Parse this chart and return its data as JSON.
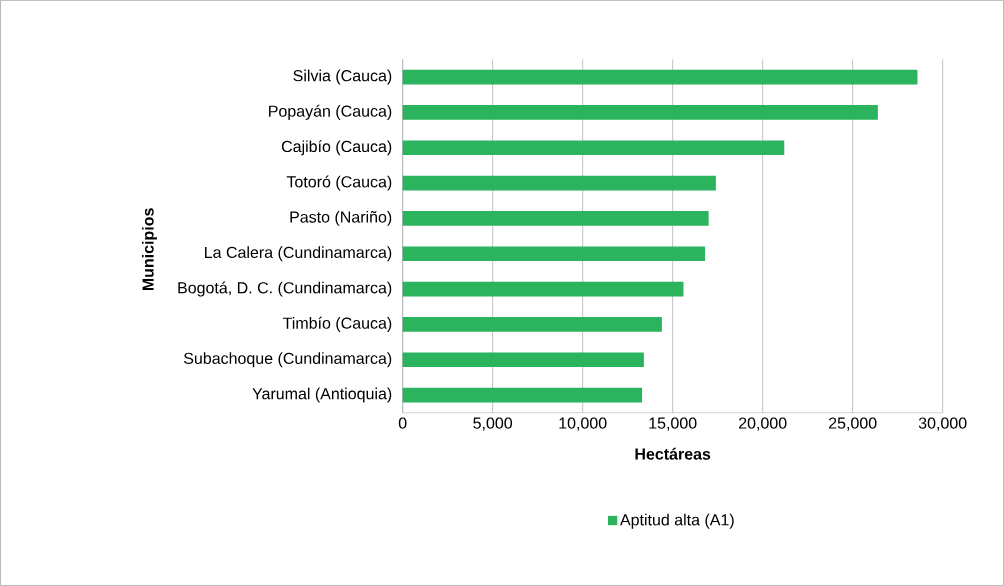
{
  "chart_data": {
    "type": "bar",
    "orientation": "horizontal",
    "xlabel": "Hectáreas",
    "ylabel": "Municipios",
    "categories": [
      "Silvia (Cauca)",
      "Popayán (Cauca)",
      "Cajibío (Cauca)",
      "Totoró (Cauca)",
      "Pasto (Nariño)",
      "La Calera (Cundinamarca)",
      "Bogotá, D. C. (Cundinamarca)",
      "Timbío (Cauca)",
      "Subachoque (Cundinamarca)",
      "Yarumal (Antioquia)"
    ],
    "series": [
      {
        "name": "Aptitud alta (A1)",
        "color": "#2bb35e",
        "values": [
          28600,
          26400,
          21200,
          17400,
          17000,
          16800,
          15600,
          14400,
          13400,
          13300
        ]
      }
    ],
    "xlim": [
      0,
      30000
    ],
    "xticks": [
      {
        "value": 0,
        "label": "0"
      },
      {
        "value": 5000,
        "label": "5,000"
      },
      {
        "value": 10000,
        "label": "10,000"
      },
      {
        "value": 15000,
        "label": "15,000"
      },
      {
        "value": 20000,
        "label": "20,000"
      },
      {
        "value": 25000,
        "label": "25,000"
      },
      {
        "value": 30000,
        "label": "30,000"
      }
    ],
    "grid": "x",
    "legend": "bottom"
  }
}
